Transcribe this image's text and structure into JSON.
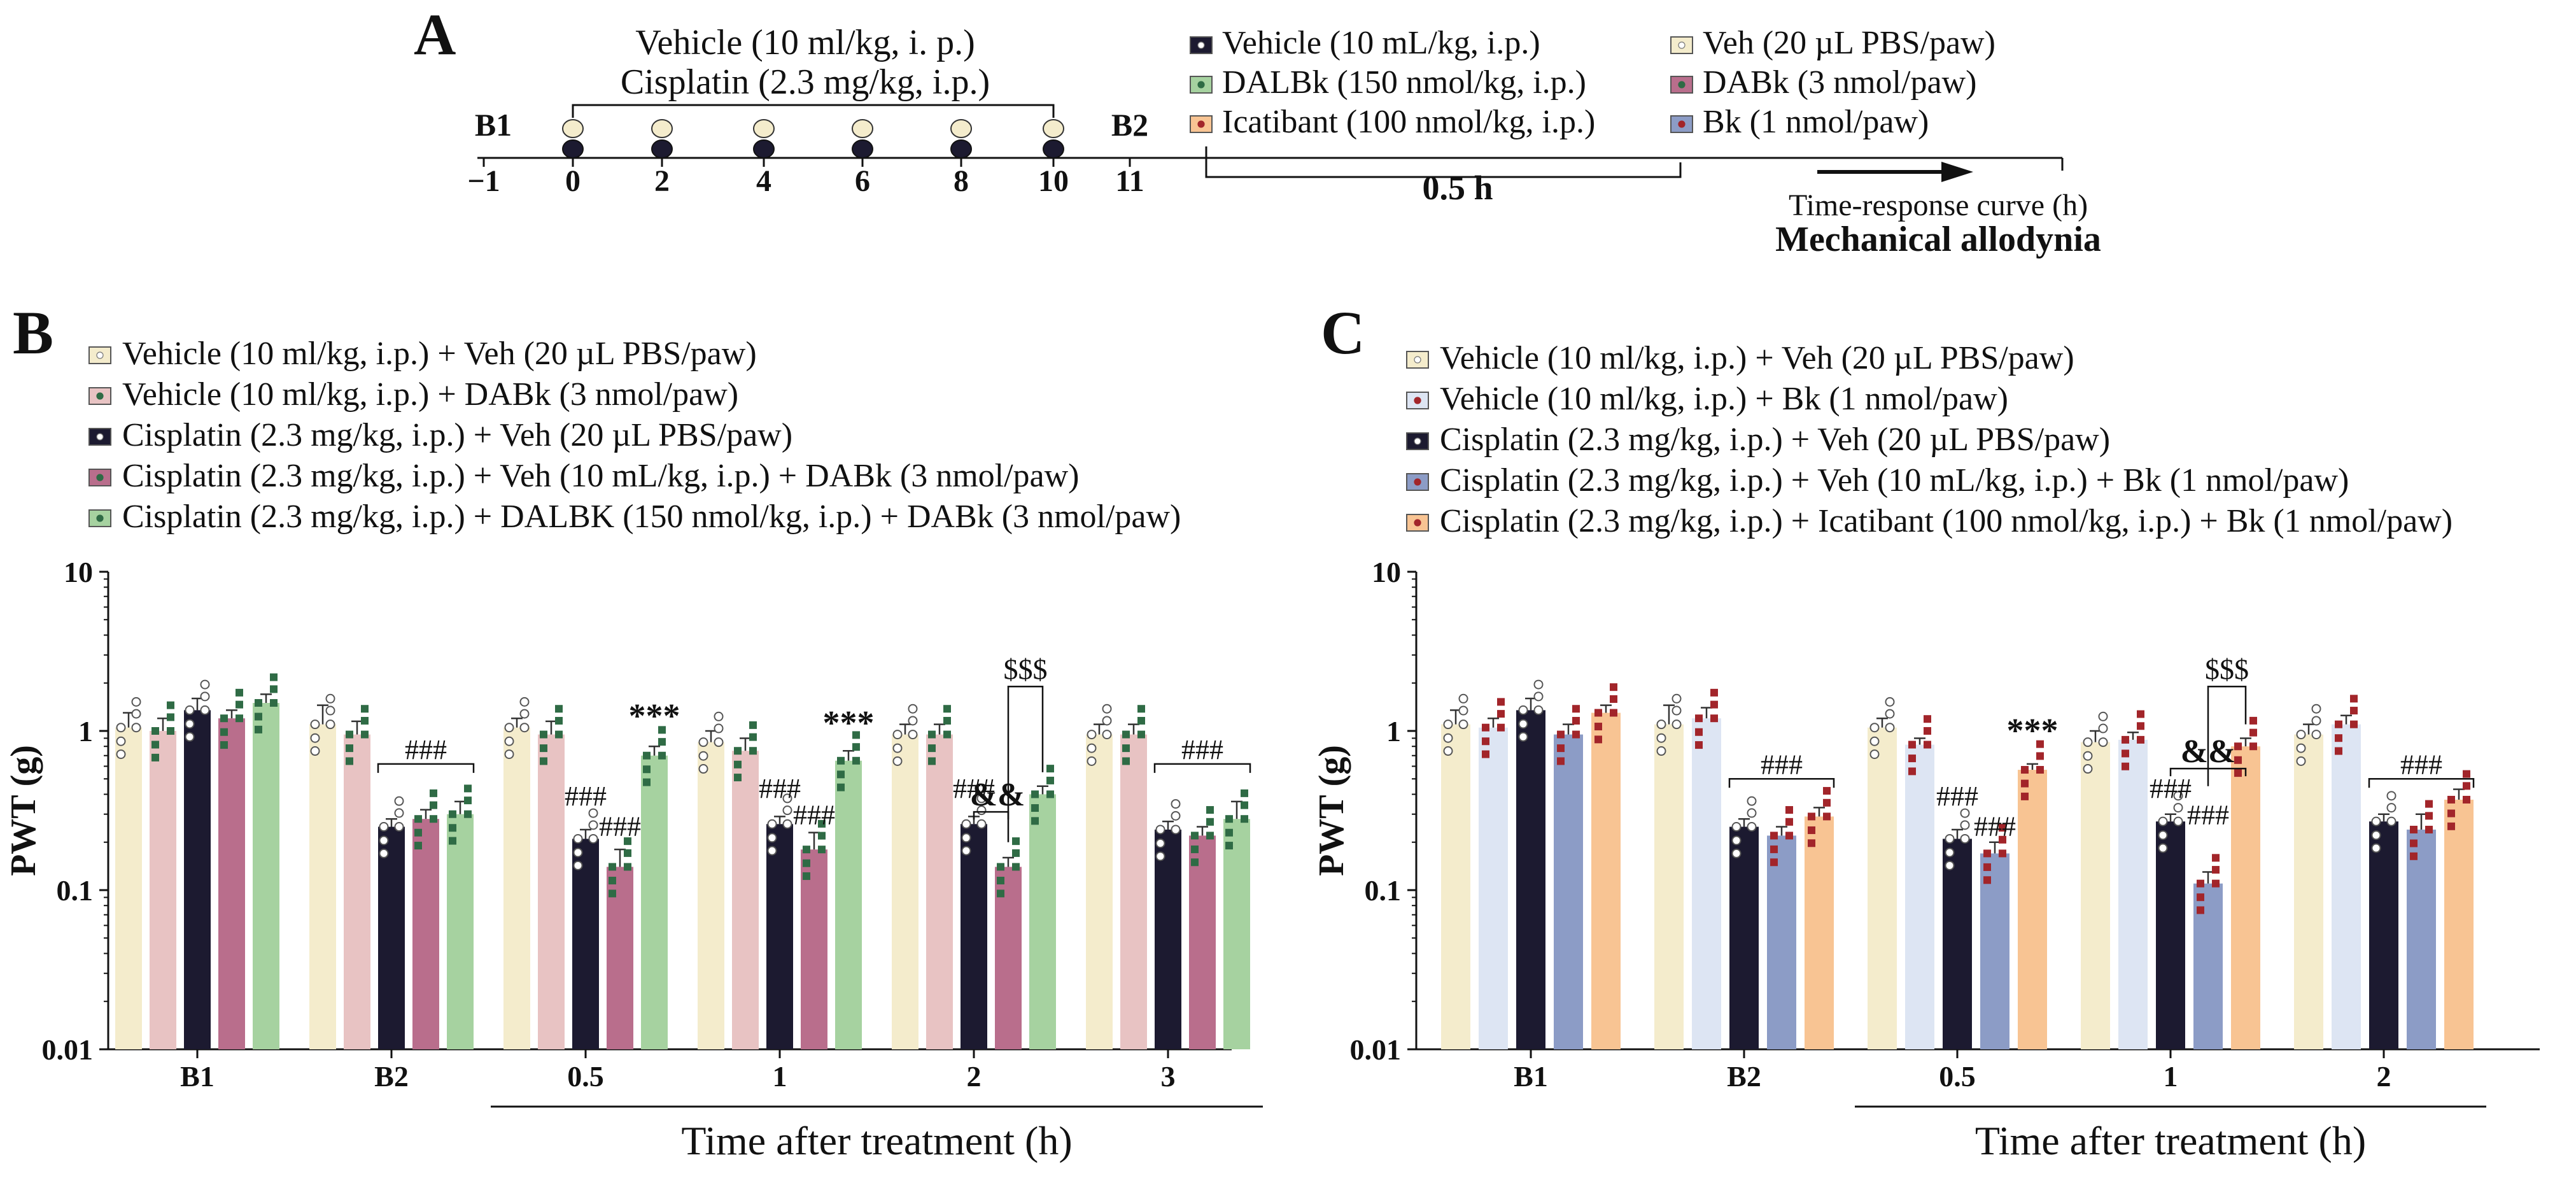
{
  "colors": {
    "cream": "#f4eccc",
    "pink": "#e8c3c3",
    "navy": "#1c1a30",
    "mauve": "#b96e8c",
    "green": "#a6d2a0",
    "lightblue": "#dde5f3",
    "blue": "#8c9cc6",
    "orange": "#f8c493",
    "dark_green_marker": "#2f6b45",
    "red_marker": "#a2252a",
    "axis": "#111111"
  },
  "panel_a": {
    "label": "A",
    "treat_line1": "Vehicle (10 ml/kg, i. p.)",
    "treat_line2": "Cisplatin (2.3 mg/kg, i.p.)",
    "b1": "B1",
    "b2": "B2",
    "days": [
      "−1",
      "0",
      "2",
      "4",
      "6",
      "8",
      "10",
      "11"
    ],
    "half_hour": "0.5 h",
    "legend_mid": [
      {
        "label": "Vehicle (10 mL/kg, i.p.)",
        "fill": "#1c1a30",
        "dot": "#ffffff"
      },
      {
        "label": "DALBk (150 nmol/kg, i.p.)",
        "fill": "#a6d2a0",
        "dot": "#2f6b45"
      },
      {
        "label": "Icatibant (100 nmol/kg, i.p.)",
        "fill": "#f8c493",
        "dot": "#a2252a"
      }
    ],
    "legend_right": [
      {
        "label": "Veh (20 µL PBS/paw)",
        "fill": "#f4eccc",
        "dot": "#ffffff"
      },
      {
        "label": "DABk (3 nmol/paw)",
        "fill": "#b96e8c",
        "dot": "#2f6b45"
      },
      {
        "label": "Bk (1 nmol/paw)",
        "fill": "#8c9cc6",
        "dot": "#a2252a"
      }
    ],
    "time_response": "Time-response curve (h)",
    "mech": "Mechanical allodynia"
  },
  "panel_b_label": "B",
  "panel_c_label": "C",
  "chart_data": [
    {
      "type": "bar",
      "panel": "B",
      "title": "",
      "xlabel": "Time after treatment (h)",
      "ylabel": "PWT (g)",
      "yscale": "log",
      "ylim": [
        0.01,
        10
      ],
      "yticks": [
        "0.01",
        "0.1",
        "1",
        "10"
      ],
      "categories": [
        "B1",
        "B2",
        "0.5",
        "1",
        "2",
        "3"
      ],
      "series": [
        {
          "name": "Vehicle (10 ml/kg, i.p.) + Veh (20 µL PBS/paw)",
          "color": "#f4eccc",
          "marker": "#ffffff",
          "values": [
            1.05,
            1.1,
            1.05,
            0.85,
            0.95,
            0.95
          ],
          "errors": [
            0.25,
            0.35,
            0.15,
            0.15,
            0.15,
            0.15
          ]
        },
        {
          "name": "Vehicle (10 ml/kg, i.p.) + DABk (3 nmol/paw)",
          "color": "#e8c3c3",
          "marker": "#2f6b45",
          "values": [
            1.0,
            0.95,
            0.95,
            0.75,
            0.95,
            0.95
          ],
          "errors": [
            0.2,
            0.2,
            0.2,
            0.15,
            0.15,
            0.15
          ]
        },
        {
          "name": "Cisplatin (2.3 mg/kg, i.p.) + Veh (20 µL PBS/paw)",
          "color": "#1c1a30",
          "marker": "#ffffff",
          "values": [
            1.35,
            0.25,
            0.21,
            0.26,
            0.26,
            0.24
          ],
          "errors": [
            0.25,
            0.03,
            0.03,
            0.03,
            0.03,
            0.03
          ]
        },
        {
          "name": "Cisplatin (2.3 mg/kg, i.p.) + Veh (10 mL/kg, i.p.) + DABk (3 nmol/paw)",
          "color": "#b96e8c",
          "marker": "#2f6b45",
          "values": [
            1.2,
            0.28,
            0.14,
            0.18,
            0.14,
            0.22
          ],
          "errors": [
            0.15,
            0.04,
            0.04,
            0.05,
            0.02,
            0.03
          ]
        },
        {
          "name": "Cisplatin (2.3 mg/kg, i.p.) + DALBK (150 nmol/kg, i.p.) + DABk (3 nmol/paw)",
          "color": "#a6d2a0",
          "marker": "#2f6b45",
          "values": [
            1.5,
            0.3,
            0.7,
            0.65,
            0.4,
            0.28
          ],
          "errors": [
            0.2,
            0.06,
            0.1,
            0.1,
            0.05,
            0.08
          ]
        }
      ],
      "annotations": {
        "hash_bracket_labels": [
          "###",
          "###",
          "###",
          "###",
          "###",
          "###",
          "###",
          "###"
        ],
        "star_labels": [
          "***",
          "***"
        ],
        "amp_label": "&&",
        "dollar_label": "$$$"
      }
    },
    {
      "type": "bar",
      "panel": "C",
      "title": "",
      "xlabel": "Time after treatment (h)",
      "ylabel": "PWT (g)",
      "yscale": "log",
      "ylim": [
        0.01,
        10
      ],
      "yticks": [
        "0.01",
        "0.1",
        "1",
        "10"
      ],
      "categories": [
        "B1",
        "B2",
        "0.5",
        "1",
        "2"
      ],
      "series": [
        {
          "name": "Vehicle (10 ml/kg, i.p.) + Veh (20 µL PBS/paw)",
          "color": "#f4eccc",
          "marker": "#ffffff",
          "values": [
            1.1,
            1.1,
            1.05,
            0.85,
            0.95
          ],
          "errors": [
            0.25,
            0.35,
            0.15,
            0.15,
            0.15
          ]
        },
        {
          "name": "Vehicle (10 ml/kg, i.p.) + Bk (1 nmol/paw)",
          "color": "#dde5f3",
          "marker": "#a2252a",
          "values": [
            1.05,
            1.2,
            0.82,
            0.88,
            1.1
          ],
          "errors": [
            0.15,
            0.2,
            0.08,
            0.1,
            0.15
          ]
        },
        {
          "name": "Cisplatin (2.3 mg/kg, i.p.) + Veh (20 µL PBS/paw)",
          "color": "#1c1a30",
          "marker": "#ffffff",
          "values": [
            1.35,
            0.25,
            0.21,
            0.27,
            0.27
          ],
          "errors": [
            0.25,
            0.03,
            0.03,
            0.03,
            0.03
          ]
        },
        {
          "name": "Cisplatin (2.3 mg/kg, i.p.) + Veh (10 mL/kg, i.p.) + Bk (1 nmol/paw)",
          "color": "#8c9cc6",
          "marker": "#a2252a",
          "values": [
            0.95,
            0.22,
            0.17,
            0.11,
            0.24
          ],
          "errors": [
            0.15,
            0.03,
            0.03,
            0.02,
            0.06
          ]
        },
        {
          "name": "Cisplatin (2.3 mg/kg, i.p.) + Icatibant (100 nmol/kg, i.p.) + Bk (1 nmol/paw)",
          "color": "#f8c493",
          "marker": "#a2252a",
          "values": [
            1.3,
            0.29,
            0.57,
            0.8,
            0.37
          ],
          "errors": [
            0.15,
            0.04,
            0.05,
            0.1,
            0.06
          ]
        }
      ],
      "annotations": {
        "hash_bracket_labels": [
          "###",
          "###",
          "###",
          "###",
          "###",
          "###"
        ],
        "star_labels": [
          "***"
        ],
        "amp_label": "&&",
        "dollar_label": "$$$"
      }
    }
  ]
}
